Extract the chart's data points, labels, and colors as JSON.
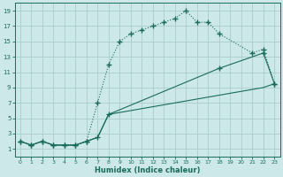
{
  "xlabel": "Humidex (Indice chaleur)",
  "bg_color": "#cce8e8",
  "grid_color": "#aacccc",
  "line_color": "#1a6b5a",
  "xlim": [
    -0.5,
    23.5
  ],
  "ylim": [
    0,
    20
  ],
  "xticks": [
    0,
    1,
    2,
    3,
    4,
    5,
    6,
    7,
    8,
    9,
    10,
    11,
    12,
    13,
    14,
    15,
    16,
    17,
    18,
    19,
    20,
    21,
    22,
    23
  ],
  "yticks": [
    1,
    3,
    5,
    7,
    9,
    11,
    13,
    15,
    17,
    19
  ],
  "curve1_x": [
    0,
    1,
    2,
    3,
    4,
    5,
    6,
    7,
    8,
    9,
    10,
    11,
    12,
    13,
    14,
    15,
    16,
    17,
    18,
    21,
    22,
    23
  ],
  "curve1_y": [
    2,
    1.5,
    2,
    1.5,
    1.5,
    1.5,
    2,
    7,
    12,
    15,
    16,
    16.5,
    17,
    17.5,
    18,
    19,
    17.5,
    17.5,
    16,
    13.5,
    14,
    9.5
  ],
  "curve2_x": [
    0,
    1,
    2,
    3,
    4,
    5,
    6,
    7,
    8,
    22,
    23
  ],
  "curve2_y": [
    2,
    1.5,
    2,
    1.5,
    1.5,
    1.5,
    2,
    2.5,
    5.5,
    9.0,
    9.5
  ],
  "curve3_x": [
    0,
    1,
    2,
    3,
    4,
    5,
    6,
    7,
    8,
    18,
    22,
    23
  ],
  "curve3_y": [
    2,
    1.5,
    2,
    1.5,
    1.5,
    1.5,
    2,
    2.5,
    5.5,
    11.5,
    13.5,
    9.5
  ],
  "curve4_x": [
    18,
    21,
    22
  ],
  "curve4_y": [
    11.5,
    13.0,
    13.5
  ],
  "marker": "+",
  "markersize": 4.5
}
